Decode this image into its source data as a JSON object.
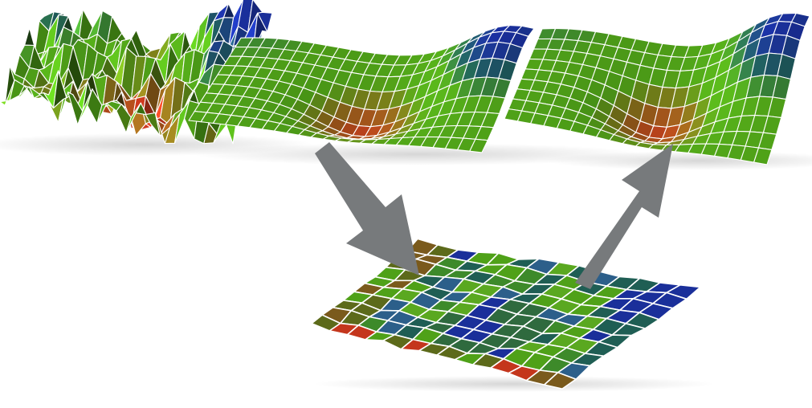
{
  "diagram": {
    "nodes": [
      {
        "id": "noisy-surface",
        "shape": "3d-mesh-surface",
        "style": "noisy-jagged"
      },
      {
        "id": "smooth-input-surface",
        "shape": "3d-mesh-surface",
        "style": "smooth"
      },
      {
        "id": "flat-grid",
        "shape": "3d-mesh-grid",
        "style": "flattened-mosaic"
      },
      {
        "id": "smooth-output-surface",
        "shape": "3d-mesh-surface",
        "style": "smooth"
      }
    ],
    "edges": [
      {
        "from": "smooth-input-surface",
        "to": "flat-grid",
        "kind": "down-arrow"
      },
      {
        "from": "flat-grid",
        "to": "smooth-output-surface",
        "kind": "up-arrow"
      }
    ],
    "colors": {
      "low": "#c4361c",
      "mid": "#4fa118",
      "high": "#1a2f9a",
      "teal": "#1f5e54",
      "arrow": "#777a7c",
      "edge": "#ffffff"
    }
  }
}
